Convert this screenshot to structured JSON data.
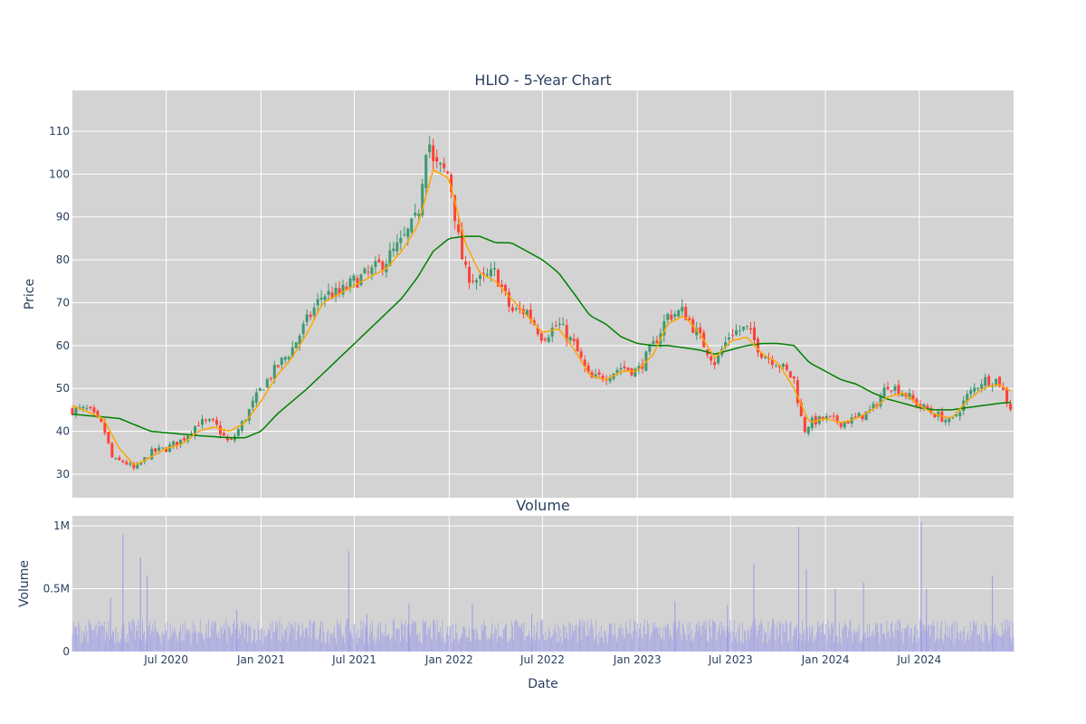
{
  "chart_data": {
    "type": "candlestick",
    "title": "HLIO - 5-Year Chart",
    "subplot_title": "Volume",
    "xlabel": "Date",
    "price_ylabel": "Price",
    "volume_ylabel": "Volume",
    "x_ticks": [
      "Jul 2020",
      "Jan 2021",
      "Jul 2021",
      "Jan 2022",
      "Jul 2022",
      "Jan 2023",
      "Jul 2023",
      "Jan 2024",
      "Jul 2024"
    ],
    "price_yticks": [
      "30",
      "40",
      "50",
      "60",
      "70",
      "80",
      "90",
      "100",
      "110"
    ],
    "price_ylim": [
      24.5,
      119.5
    ],
    "volume_yticks": [
      "0",
      "0.5M",
      "1M"
    ],
    "volume_ylim": [
      0,
      1080000
    ],
    "x_range": [
      "2020-01-01",
      "2024-12-31"
    ],
    "grid": true,
    "colors": {
      "increasing": "#3d9970",
      "decreasing": "#ff4136",
      "ma_short": "#ffa500",
      "ma_long": "#008000",
      "volume": "#9a9ae8",
      "plot_bg": "#d3d3d3"
    },
    "price_anchors": [
      [
        "2020-01-01",
        45
      ],
      [
        "2020-02-01",
        45
      ],
      [
        "2020-03-01",
        41
      ],
      [
        "2020-03-20",
        33
      ],
      [
        "2020-04-10",
        33
      ],
      [
        "2020-05-01",
        31
      ],
      [
        "2020-06-01",
        35
      ],
      [
        "2020-07-01",
        36
      ],
      [
        "2020-08-01",
        38
      ],
      [
        "2020-09-01",
        42
      ],
      [
        "2020-10-01",
        42
      ],
      [
        "2020-11-01",
        37
      ],
      [
        "2020-12-01",
        43
      ],
      [
        "2021-01-01",
        50
      ],
      [
        "2021-02-01",
        55
      ],
      [
        "2021-03-01",
        59
      ],
      [
        "2021-04-01",
        66
      ],
      [
        "2021-05-01",
        72
      ],
      [
        "2021-06-01",
        72
      ],
      [
        "2021-07-01",
        75
      ],
      [
        "2021-08-01",
        77
      ],
      [
        "2021-09-01",
        80
      ],
      [
        "2021-10-01",
        84
      ],
      [
        "2021-11-01",
        90
      ],
      [
        "2021-11-20",
        110
      ],
      [
        "2021-12-01",
        102
      ],
      [
        "2022-01-01",
        100
      ],
      [
        "2022-01-20",
        84
      ],
      [
        "2022-02-01",
        77
      ],
      [
        "2022-03-01",
        75
      ],
      [
        "2022-04-01",
        77
      ],
      [
        "2022-05-01",
        68
      ],
      [
        "2022-06-01",
        68
      ],
      [
        "2022-07-01",
        62
      ],
      [
        "2022-08-01",
        65
      ],
      [
        "2022-09-01",
        60
      ],
      [
        "2022-10-01",
        52
      ],
      [
        "2022-11-01",
        53
      ],
      [
        "2022-12-01",
        55
      ],
      [
        "2023-01-01",
        54
      ],
      [
        "2023-02-01",
        60
      ],
      [
        "2023-03-01",
        67
      ],
      [
        "2023-04-01",
        68
      ],
      [
        "2023-05-01",
        62
      ],
      [
        "2023-06-01",
        56
      ],
      [
        "2023-07-01",
        63
      ],
      [
        "2023-08-01",
        64
      ],
      [
        "2023-09-01",
        58
      ],
      [
        "2023-10-01",
        56
      ],
      [
        "2023-11-01",
        52
      ],
      [
        "2023-11-20",
        40
      ],
      [
        "2023-12-01",
        42
      ],
      [
        "2024-01-01",
        43
      ],
      [
        "2024-02-01",
        42
      ],
      [
        "2024-03-01",
        43
      ],
      [
        "2024-04-01",
        45
      ],
      [
        "2024-05-01",
        51
      ],
      [
        "2024-06-01",
        49
      ],
      [
        "2024-07-01",
        46
      ],
      [
        "2024-08-01",
        44
      ],
      [
        "2024-09-01",
        42
      ],
      [
        "2024-10-01",
        48
      ],
      [
        "2024-11-01",
        52
      ],
      [
        "2024-12-01",
        52
      ],
      [
        "2024-12-31",
        44
      ]
    ],
    "ma_short_anchors": [
      [
        "2020-01-01",
        46
      ],
      [
        "2020-03-01",
        43
      ],
      [
        "2020-04-01",
        36
      ],
      [
        "2020-05-01",
        32
      ],
      [
        "2020-06-01",
        34
      ],
      [
        "2020-07-01",
        36
      ],
      [
        "2020-08-01",
        37
      ],
      [
        "2020-09-01",
        40
      ],
      [
        "2020-10-01",
        41
      ],
      [
        "2020-11-01",
        40
      ],
      [
        "2020-12-01",
        42
      ],
      [
        "2021-01-01",
        47
      ],
      [
        "2021-02-01",
        53
      ],
      [
        "2021-03-01",
        57
      ],
      [
        "2021-04-01",
        63
      ],
      [
        "2021-05-01",
        70
      ],
      [
        "2021-06-01",
        72
      ],
      [
        "2021-07-01",
        74
      ],
      [
        "2021-08-01",
        76
      ],
      [
        "2021-09-01",
        78
      ],
      [
        "2021-10-01",
        82
      ],
      [
        "2021-11-01",
        88
      ],
      [
        "2021-12-01",
        101
      ],
      [
        "2022-01-01",
        99
      ],
      [
        "2022-02-01",
        84
      ],
      [
        "2022-03-01",
        77
      ],
      [
        "2022-04-01",
        75
      ],
      [
        "2022-05-01",
        71
      ],
      [
        "2022-06-01",
        67
      ],
      [
        "2022-07-01",
        63
      ],
      [
        "2022-08-01",
        64
      ],
      [
        "2022-09-01",
        59
      ],
      [
        "2022-10-01",
        53
      ],
      [
        "2022-11-01",
        52
      ],
      [
        "2022-12-01",
        54
      ],
      [
        "2023-01-01",
        54
      ],
      [
        "2023-02-01",
        58
      ],
      [
        "2023-03-01",
        65
      ],
      [
        "2023-04-01",
        67
      ],
      [
        "2023-05-01",
        63
      ],
      [
        "2023-06-01",
        57
      ],
      [
        "2023-07-01",
        61
      ],
      [
        "2023-08-01",
        62
      ],
      [
        "2023-09-01",
        58
      ],
      [
        "2023-10-01",
        56
      ],
      [
        "2023-11-01",
        50
      ],
      [
        "2023-12-01",
        42
      ],
      [
        "2024-01-01",
        43
      ],
      [
        "2024-02-01",
        42
      ],
      [
        "2024-03-01",
        43
      ],
      [
        "2024-04-01",
        45
      ],
      [
        "2024-05-01",
        48
      ],
      [
        "2024-06-01",
        49
      ],
      [
        "2024-07-01",
        46
      ],
      [
        "2024-08-01",
        44
      ],
      [
        "2024-09-01",
        43
      ],
      [
        "2024-10-01",
        47
      ],
      [
        "2024-11-01",
        50
      ],
      [
        "2024-12-01",
        51
      ],
      [
        "2024-12-31",
        49
      ]
    ],
    "ma_long_anchors": [
      [
        "2020-01-01",
        44
      ],
      [
        "2020-04-01",
        43
      ],
      [
        "2020-06-01",
        40
      ],
      [
        "2020-09-01",
        39
      ],
      [
        "2020-11-01",
        38.5
      ],
      [
        "2020-12-01",
        38.5
      ],
      [
        "2021-01-01",
        40
      ],
      [
        "2021-02-01",
        44
      ],
      [
        "2021-04-01",
        50
      ],
      [
        "2021-06-01",
        57
      ],
      [
        "2021-08-01",
        64
      ],
      [
        "2021-10-01",
        71
      ],
      [
        "2021-11-01",
        76
      ],
      [
        "2021-12-01",
        82
      ],
      [
        "2022-01-01",
        85
      ],
      [
        "2022-02-01",
        85.5
      ],
      [
        "2022-03-01",
        85.5
      ],
      [
        "2022-04-01",
        84
      ],
      [
        "2022-05-01",
        84
      ],
      [
        "2022-06-01",
        82
      ],
      [
        "2022-07-01",
        80
      ],
      [
        "2022-08-01",
        77
      ],
      [
        "2022-09-01",
        72
      ],
      [
        "2022-10-01",
        67
      ],
      [
        "2022-11-01",
        65
      ],
      [
        "2022-12-01",
        62
      ],
      [
        "2023-01-01",
        60.5
      ],
      [
        "2023-02-01",
        60
      ],
      [
        "2023-03-01",
        60
      ],
      [
        "2023-04-01",
        59.5
      ],
      [
        "2023-05-01",
        59
      ],
      [
        "2023-06-01",
        58
      ],
      [
        "2023-07-01",
        59
      ],
      [
        "2023-08-01",
        60
      ],
      [
        "2023-09-01",
        60.5
      ],
      [
        "2023-10-01",
        60.5
      ],
      [
        "2023-11-01",
        60
      ],
      [
        "2023-12-01",
        56
      ],
      [
        "2024-01-01",
        54
      ],
      [
        "2024-02-01",
        52
      ],
      [
        "2024-03-01",
        51
      ],
      [
        "2024-04-01",
        49
      ],
      [
        "2024-05-01",
        47.5
      ],
      [
        "2024-06-01",
        46.5
      ],
      [
        "2024-07-01",
        45.5
      ],
      [
        "2024-08-01",
        45
      ],
      [
        "2024-09-01",
        45
      ],
      [
        "2024-10-01",
        45.5
      ],
      [
        "2024-11-01",
        46
      ],
      [
        "2024-12-01",
        46.5
      ],
      [
        "2024-12-31",
        46.8
      ]
    ],
    "volume_spikes": [
      [
        "2020-03-15",
        430000
      ],
      [
        "2020-04-08",
        930000
      ],
      [
        "2020-05-12",
        750000
      ],
      [
        "2020-05-25",
        600000
      ],
      [
        "2020-11-15",
        330000
      ],
      [
        "2021-06-20",
        800000
      ],
      [
        "2021-07-25",
        300000
      ],
      [
        "2021-10-15",
        380000
      ],
      [
        "2022-02-15",
        380000
      ],
      [
        "2022-06-10",
        300000
      ],
      [
        "2023-03-15",
        400000
      ],
      [
        "2023-06-25",
        370000
      ],
      [
        "2023-08-15",
        700000
      ],
      [
        "2023-11-10",
        990000
      ],
      [
        "2023-11-25",
        650000
      ],
      [
        "2024-01-20",
        500000
      ],
      [
        "2024-03-15",
        550000
      ],
      [
        "2024-07-05",
        1030000
      ],
      [
        "2024-07-15",
        500000
      ],
      [
        "2024-11-20",
        600000
      ]
    ],
    "volume_base": 180000
  }
}
